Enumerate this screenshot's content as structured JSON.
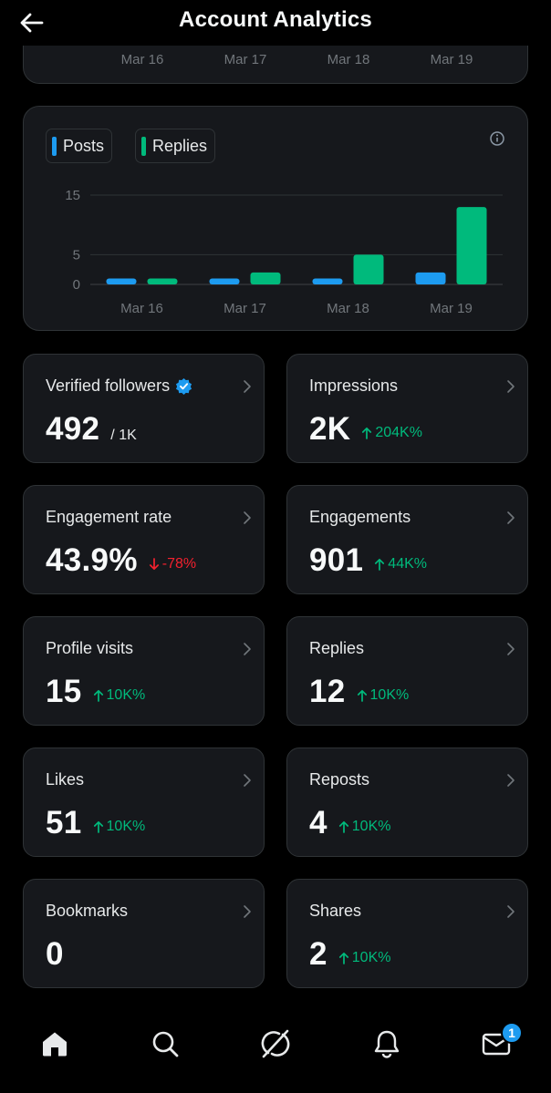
{
  "header": {
    "title": "Account Analytics"
  },
  "top_chart": {
    "ticks": [
      "Mar 16",
      "Mar 17",
      "Mar 18",
      "Mar 19"
    ]
  },
  "chart_data": {
    "type": "bar",
    "title": "",
    "xlabel": "",
    "ylabel": "",
    "categories": [
      "Mar 16",
      "Mar 17",
      "Mar 18",
      "Mar 19"
    ],
    "series": [
      {
        "name": "Posts",
        "color": "#1d9bf0",
        "values": [
          1,
          1,
          1,
          2
        ]
      },
      {
        "name": "Replies",
        "color": "#00ba7c",
        "values": [
          1,
          2,
          5,
          13
        ]
      }
    ],
    "ylim": [
      0,
      15
    ],
    "yticks": [
      0,
      5,
      15
    ],
    "grid": true,
    "legend": "top-left"
  },
  "legend": {
    "posts": "Posts",
    "replies": "Replies"
  },
  "stats": [
    {
      "id": "verified-followers",
      "label": "Verified followers",
      "verified_icon": true,
      "value": "492",
      "sub": "/ 1K",
      "change": "",
      "dir": ""
    },
    {
      "id": "impressions",
      "label": "Impressions",
      "value": "2K",
      "sub": "",
      "change": "204K%",
      "dir": "up"
    },
    {
      "id": "engagement-rate",
      "label": "Engagement rate",
      "value": "43.9%",
      "sub": "",
      "change": "-78%",
      "dir": "down"
    },
    {
      "id": "engagements",
      "label": "Engagements",
      "value": "901",
      "sub": "",
      "change": "44K%",
      "dir": "up"
    },
    {
      "id": "profile-visits",
      "label": "Profile visits",
      "value": "15",
      "sub": "",
      "change": "10K%",
      "dir": "up"
    },
    {
      "id": "replies",
      "label": "Replies",
      "value": "12",
      "sub": "",
      "change": "10K%",
      "dir": "up"
    },
    {
      "id": "likes",
      "label": "Likes",
      "value": "51",
      "sub": "",
      "change": "10K%",
      "dir": "up"
    },
    {
      "id": "reposts",
      "label": "Reposts",
      "value": "4",
      "sub": "",
      "change": "10K%",
      "dir": "up"
    },
    {
      "id": "bookmarks",
      "label": "Bookmarks",
      "value": "0",
      "sub": "",
      "change": "",
      "dir": ""
    },
    {
      "id": "shares",
      "label": "Shares",
      "value": "2",
      "sub": "",
      "change": "10K%",
      "dir": "up"
    }
  ],
  "nav": {
    "items": [
      "home-icon",
      "search-icon",
      "grok-icon",
      "notifications-icon",
      "messages-icon"
    ],
    "messages_badge": "1"
  },
  "colors": {
    "posts": "#1d9bf0",
    "replies": "#00ba7c",
    "up": "#00ba7c",
    "down": "#f4212e",
    "card": "#16181c",
    "border": "#2f3336"
  }
}
